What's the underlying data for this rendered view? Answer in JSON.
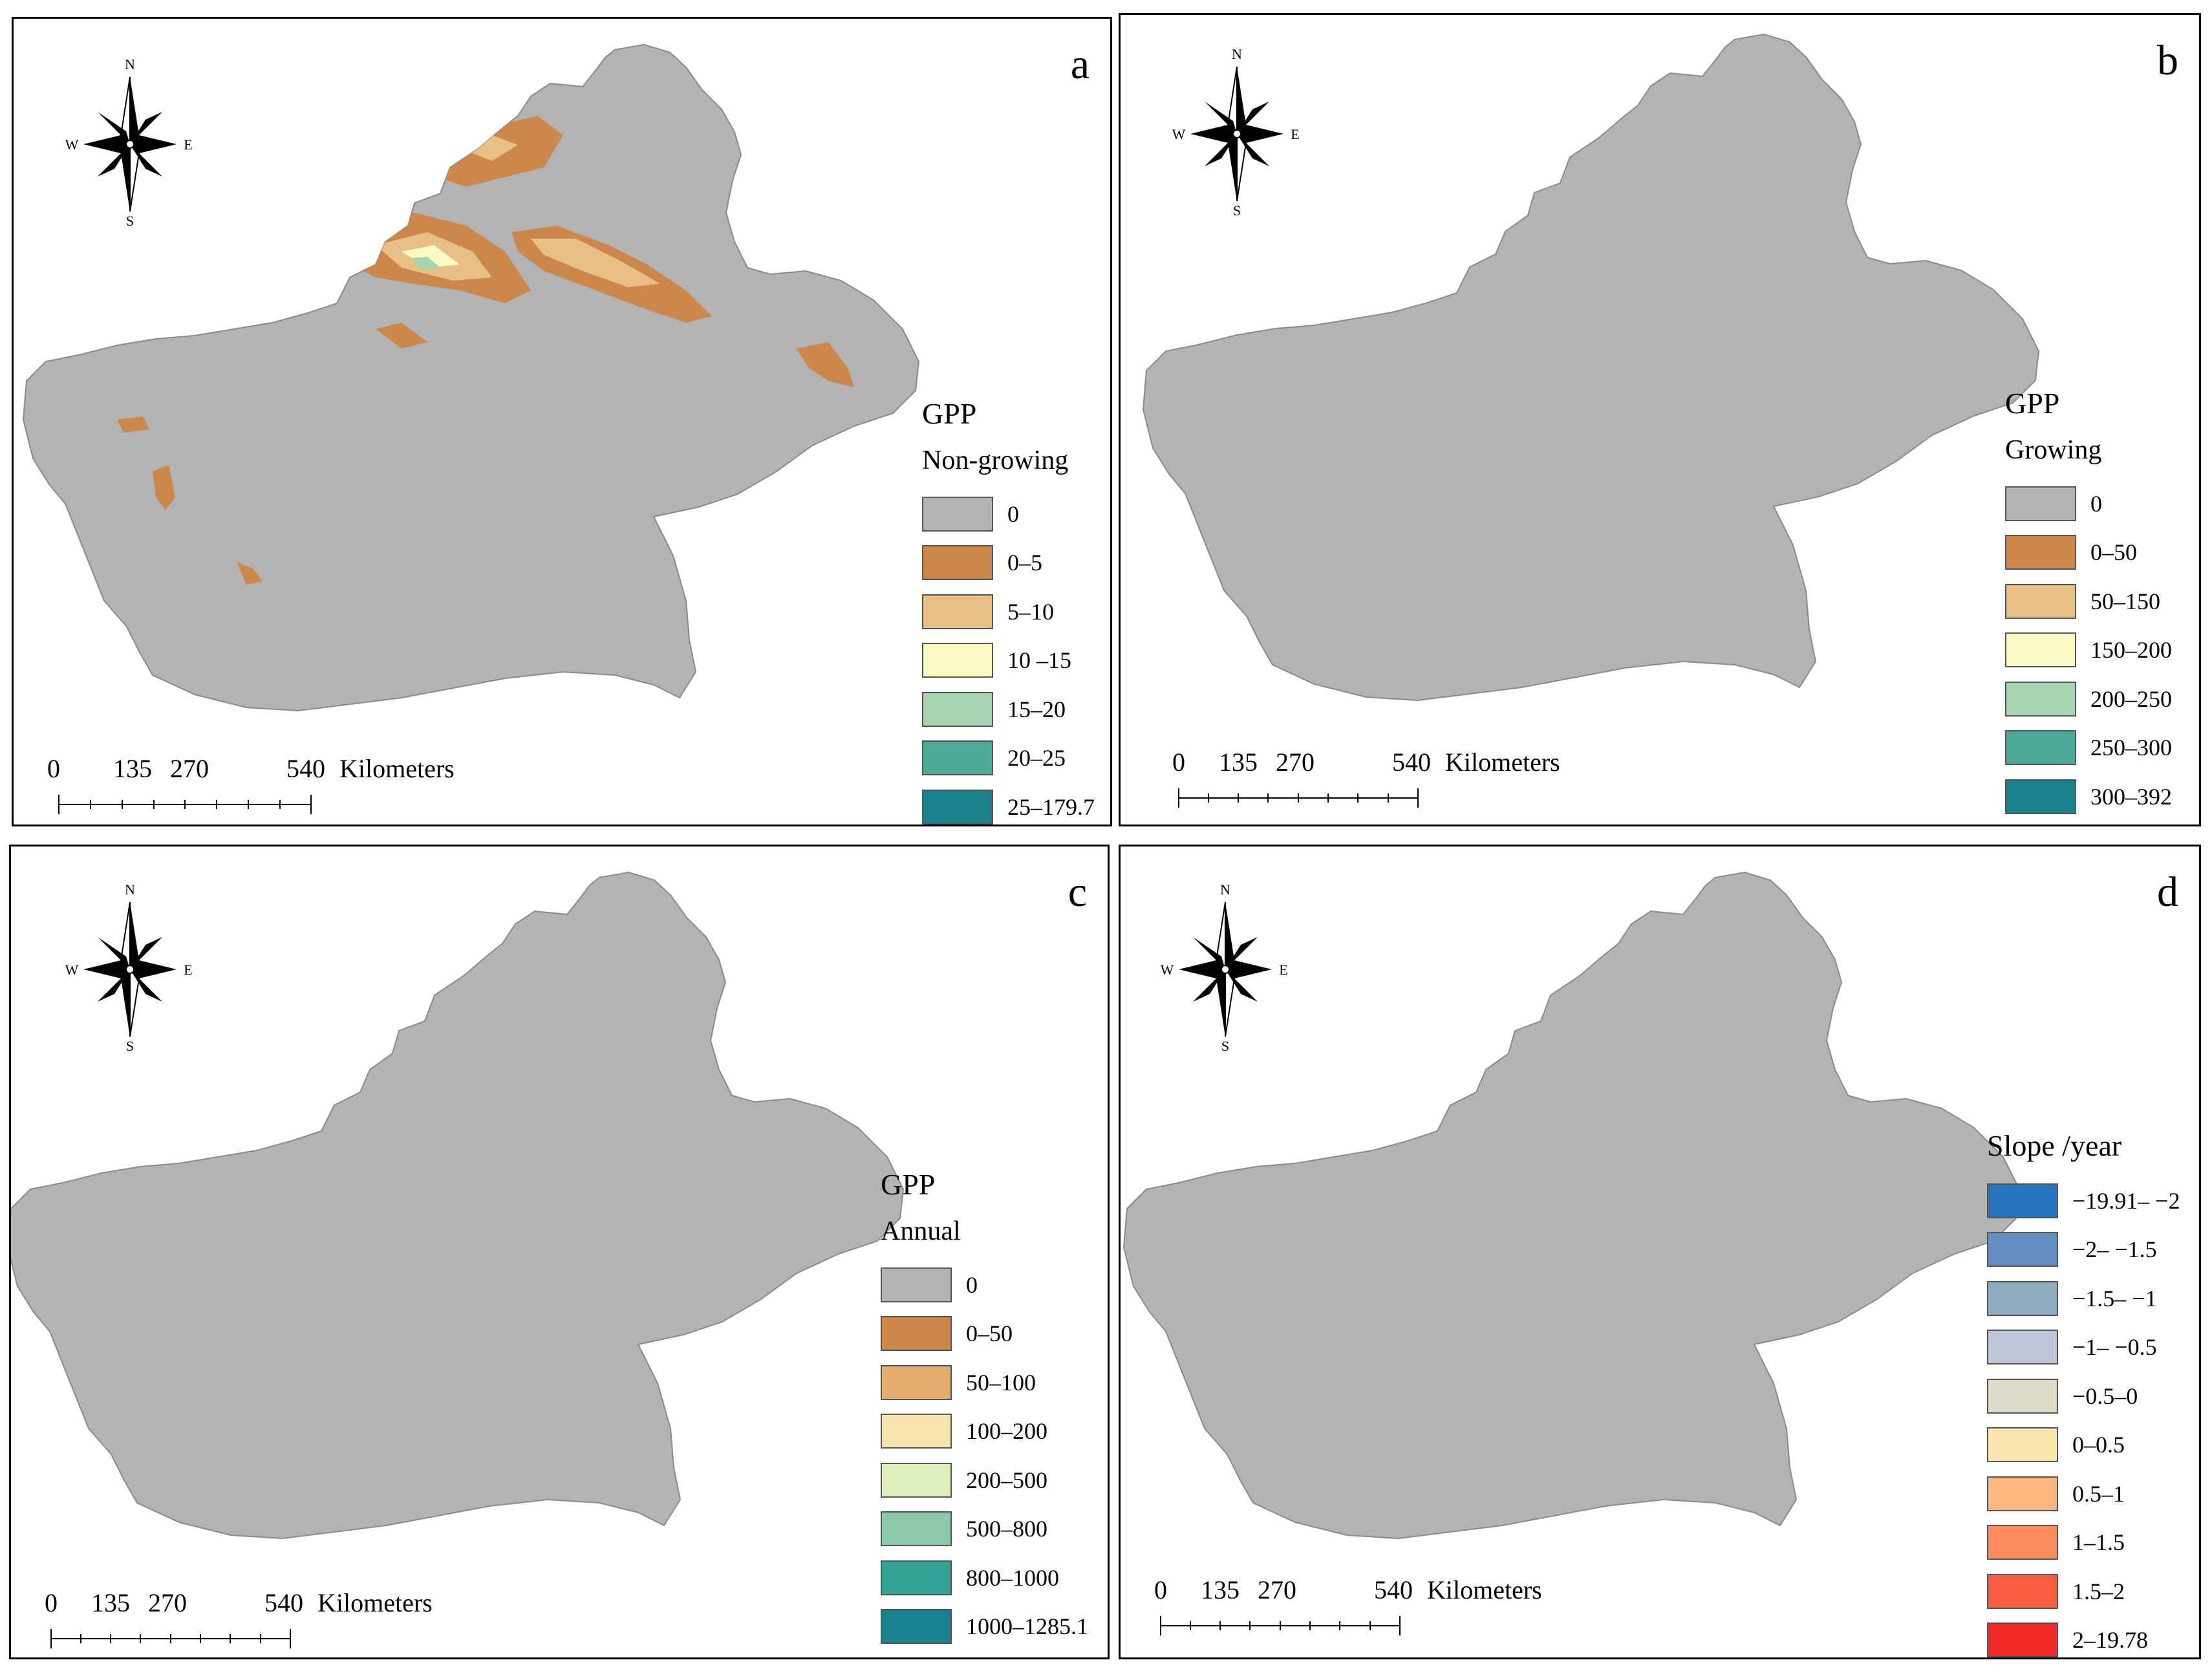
{
  "compass": {
    "north": "N",
    "south": "S",
    "east": "E",
    "west": "W"
  },
  "scale_bar": {
    "ticks": [
      "0",
      "135",
      "270",
      "540"
    ],
    "unit": "Kilometers"
  },
  "colors": {
    "background_gray": "#b3b3b3",
    "background_beige": "#dcdcc8"
  },
  "panels": [
    {
      "letter": "a",
      "legend_title": "GPP",
      "legend_subtitle": "Non-growing",
      "legend": [
        {
          "label": "0",
          "color": "#b3b3b3"
        },
        {
          "label": "0–5",
          "color": "#cc874b"
        },
        {
          "label": "5–10",
          "color": "#e8bf84"
        },
        {
          "label": "10 –15",
          "color": "#fbf9c2"
        },
        {
          "label": "15–20",
          "color": "#a9d4b1"
        },
        {
          "label": "20–25",
          "color": "#4faa99"
        },
        {
          "label": "25–179.7",
          "color": "#19818c"
        }
      ]
    },
    {
      "letter": "b",
      "legend_title": "GPP",
      "legend_subtitle": "Growing",
      "legend": [
        {
          "label": "0",
          "color": "#b3b3b3"
        },
        {
          "label": "0–50",
          "color": "#cc874b"
        },
        {
          "label": "50–150",
          "color": "#e8bf84"
        },
        {
          "label": "150–200",
          "color": "#fbf9c2"
        },
        {
          "label": "200–250",
          "color": "#a9d4b1"
        },
        {
          "label": "250–300",
          "color": "#4faa99"
        },
        {
          "label": "300–392",
          "color": "#19818c"
        }
      ]
    },
    {
      "letter": "c",
      "legend_title": "GPP",
      "legend_subtitle": "Annual",
      "legend": [
        {
          "label": "0",
          "color": "#b3b3b3"
        },
        {
          "label": "0–50",
          "color": "#cc874b"
        },
        {
          "label": "50–100",
          "color": "#e4ae70"
        },
        {
          "label": "100–200",
          "color": "#f6e4ad"
        },
        {
          "label": "200–500",
          "color": "#ddeebd"
        },
        {
          "label": "500–800",
          "color": "#8cc8a9"
        },
        {
          "label": "800–1000",
          "color": "#33a396"
        },
        {
          "label": "1000–1285.1",
          "color": "#17818d"
        }
      ]
    },
    {
      "letter": "d",
      "legend_title": "Slope /year",
      "legend_subtitle": "",
      "legend": [
        {
          "label": "−19.91– −2",
          "color": "#2774bd"
        },
        {
          "label": "−2– −1.5",
          "color": "#628fc0"
        },
        {
          "label": "−1.5– −1",
          "color": "#8fadc1"
        },
        {
          "label": "−1– −0.5",
          "color": "#bdc6d6"
        },
        {
          "label": "−0.5–0",
          "color": "#dcdcc8"
        },
        {
          "label": "0–0.5",
          "color": "#fde6ae"
        },
        {
          "label": "0.5–1",
          "color": "#fcb680"
        },
        {
          "label": "1–1.5",
          "color": "#fc8c5d"
        },
        {
          "label": "1.5–2",
          "color": "#f95e42"
        },
        {
          "label": "2–19.78",
          "color": "#f02a26"
        }
      ]
    }
  ]
}
